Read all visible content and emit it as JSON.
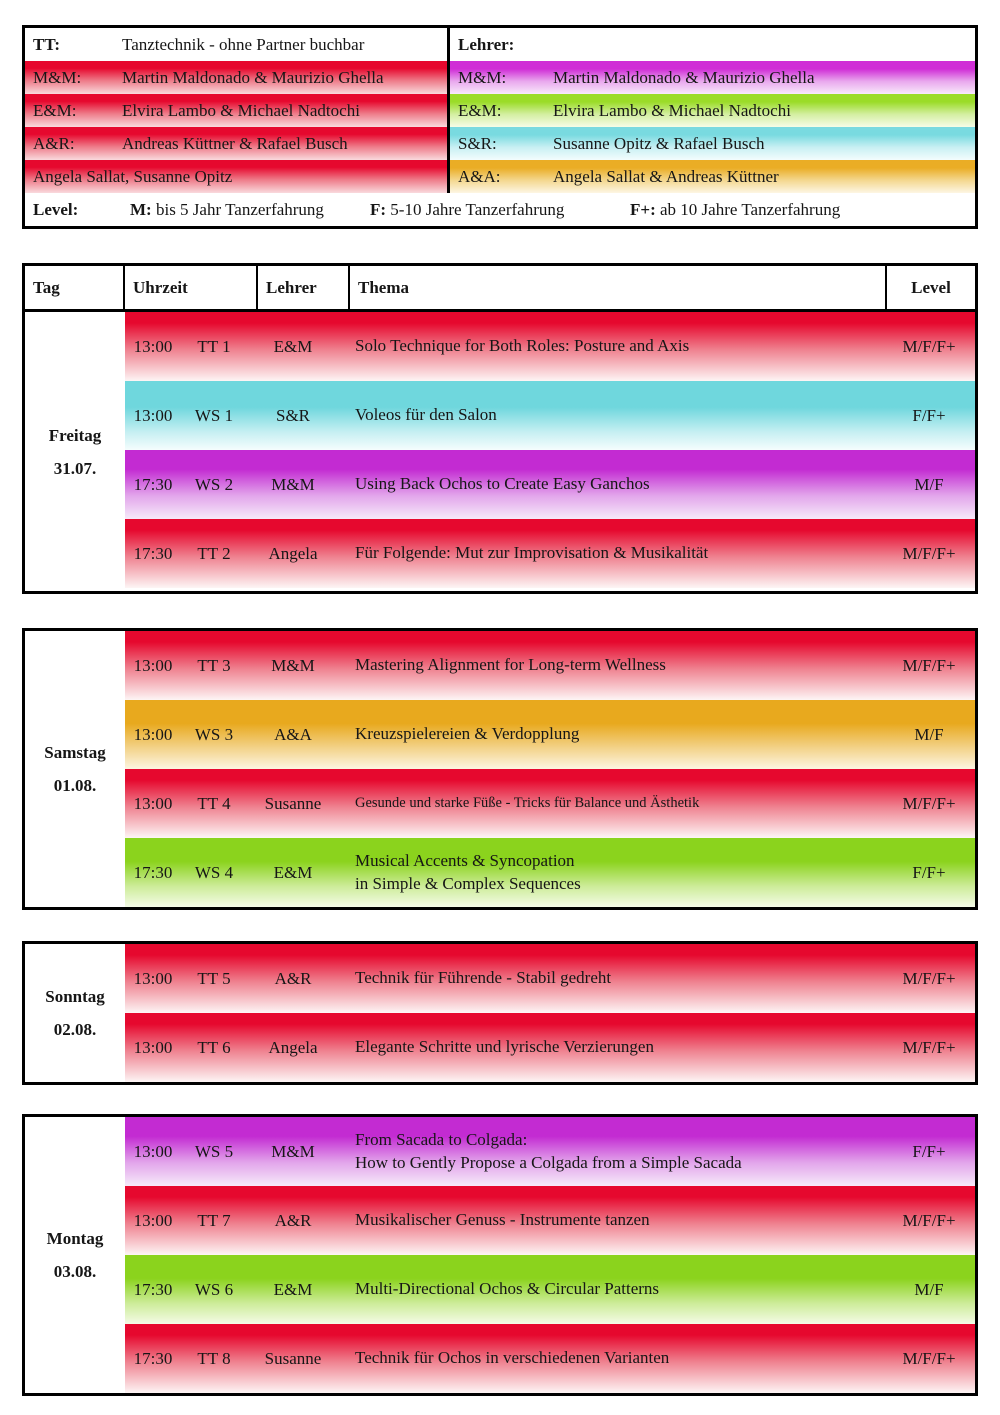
{
  "legend": {
    "tt_label": "TT:",
    "tt_value": "Tanztechnik - ohne Partner buchbar",
    "lehrer_label": "Lehrer:",
    "left_rows": [
      {
        "label": "M&M:",
        "value": "Martin Maldonado & Maurizio Ghella",
        "color": "red"
      },
      {
        "label": "E&M:",
        "value": "Elvira Lambo & Michael Nadtochi",
        "color": "red"
      },
      {
        "label": "A&R:",
        "value": "Andreas Küttner & Rafael Busch",
        "color": "red"
      },
      {
        "label": "",
        "value": "Angela Sallat, Susanne Opitz",
        "color": "red"
      }
    ],
    "right_rows": [
      {
        "label": "M&M:",
        "value": "Martin Maldonado & Maurizio Ghella",
        "color": "purple"
      },
      {
        "label": "E&M:",
        "value": "Elvira Lambo & Michael Nadtochi",
        "color": "green"
      },
      {
        "label": "S&R:",
        "value": "Susanne Opitz & Rafael Busch",
        "color": "cyan"
      },
      {
        "label": "A&A:",
        "value": "Angela Sallat & Andreas Küttner",
        "color": "orange"
      }
    ],
    "level": {
      "label": "Level:",
      "items": [
        {
          "key": "M:",
          "text": " bis 5 Jahr Tanzerfahrung"
        },
        {
          "key": "F:",
          "text": " 5-10 Jahre Tanzerfahrung"
        },
        {
          "key": "F+:",
          "text": " ab 10 Jahre Tanzerfahrung"
        }
      ]
    }
  },
  "schedule": {
    "columns": [
      "Tag",
      "Uhrzeit",
      "Lehrer",
      "Thema",
      "Level"
    ],
    "days": [
      {
        "day": "Freitag",
        "date": "31.07.",
        "rows": [
          {
            "time": "13:00",
            "code": "TT 1",
            "teacher": "E&M",
            "topic": [
              "Solo Technique for Both Roles: Posture and Axis"
            ],
            "level": "M/F/F+",
            "color": "red"
          },
          {
            "time": "13:00",
            "code": "WS 1",
            "teacher": "S&R",
            "topic": [
              "Voleos für den Salon"
            ],
            "level": "F/F+",
            "color": "cyan"
          },
          {
            "time": "17:30",
            "code": "WS 2",
            "teacher": "M&M",
            "topic": [
              "Using Back Ochos to Create Easy Ganchos"
            ],
            "level": "M/F",
            "color": "purple"
          },
          {
            "time": "17:30",
            "code": "TT 2",
            "teacher": "Angela",
            "topic": [
              "Für Folgende: Mut zur Improvisation & Musikalität"
            ],
            "level": "M/F/F+",
            "color": "red"
          }
        ]
      },
      {
        "day": "Samstag",
        "date": "01.08.",
        "rows": [
          {
            "time": "13:00",
            "code": "TT 3",
            "teacher": "M&M",
            "topic": [
              "Mastering Alignment for Long-term Wellness"
            ],
            "level": "M/F/F+",
            "color": "red"
          },
          {
            "time": "13:00",
            "code": "WS 3",
            "teacher": "A&A",
            "topic": [
              "Kreuzspielereien & Verdopplung"
            ],
            "level": "M/F",
            "color": "orange"
          },
          {
            "time": "13:00",
            "code": "TT 4",
            "teacher": "Susanne",
            "topic": [
              "Gesunde und starke Füße - Tricks für Balance und Ästhetik"
            ],
            "level": "M/F/F+",
            "color": "red"
          },
          {
            "time": "17:30",
            "code": "WS 4",
            "teacher": "E&M",
            "topic": [
              "Musical Accents & Syncopation",
              "in Simple & Complex Sequences"
            ],
            "level": "F/F+",
            "color": "green"
          }
        ]
      },
      {
        "day": "Sonntag",
        "date": "02.08.",
        "rows": [
          {
            "time": "13:00",
            "code": "TT 5",
            "teacher": "A&R",
            "topic": [
              "Technik für Führende - Stabil gedreht"
            ],
            "level": "M/F/F+",
            "color": "red"
          },
          {
            "time": "13:00",
            "code": "TT 6",
            "teacher": "Angela",
            "topic": [
              "Elegante Schritte und lyrische Verzierungen"
            ],
            "level": "M/F/F+",
            "color": "red"
          }
        ]
      },
      {
        "day": "Montag",
        "date": "03.08.",
        "rows": [
          {
            "time": "13:00",
            "code": "WS 5",
            "teacher": "M&M",
            "topic": [
              "From Sacada to Colgada:",
              "How to Gently Propose a Colgada from a Simple Sacada"
            ],
            "level": "F/F+",
            "color": "purple"
          },
          {
            "time": "13:00",
            "code": "TT 7",
            "teacher": "A&R",
            "topic": [
              "Musikalischer Genuss - Instrumente tanzen"
            ],
            "level": "M/F/F+",
            "color": "red"
          },
          {
            "time": "17:30",
            "code": "WS 6",
            "teacher": "E&M",
            "topic": [
              "Multi-Directional Ochos & Circular Patterns"
            ],
            "level": "M/F",
            "color": "green"
          },
          {
            "time": "17:30",
            "code": "TT 8",
            "teacher": "Susanne",
            "topic": [
              "Technik für Ochos in verschiedenen Varianten"
            ],
            "level": "M/F/F+",
            "color": "red"
          }
        ]
      }
    ]
  },
  "colors": {
    "red": {
      "strong": "#e6082e",
      "hold": "16%",
      "mid": "#ef8290",
      "midpos": "55%",
      "pale": "#fdf5f5"
    },
    "cyan": {
      "strong": "#6fd7dd",
      "hold": "38%",
      "mid": "#c6eff2",
      "midpos": "74%",
      "pale": "#f5fdfd"
    },
    "purple": {
      "strong": "#c32bd2",
      "hold": "28%",
      "mid": "#e2a5eb",
      "midpos": "66%",
      "pale": "#f6eaf9"
    },
    "green": {
      "strong": "#8bd31d",
      "hold": "34%",
      "mid": "#cdec99",
      "midpos": "70%",
      "pale": "#f4fbe7"
    },
    "orange": {
      "strong": "#e8a91e",
      "hold": "34%",
      "mid": "#f3d38b",
      "midpos": "70%",
      "pale": "#fcf5e1"
    }
  },
  "colors_legend": {
    "red": {
      "strong": "#e6082e",
      "hold": "22%",
      "mid": "#ee7c8a",
      "midpos": "60%",
      "pale": "#f9dadd"
    },
    "purple": {
      "strong": "#d02dd6",
      "hold": "24%",
      "mid": "#e9a9ee",
      "midpos": "62%",
      "pale": "#f8e8fa"
    },
    "green": {
      "strong": "#9bdc28",
      "hold": "24%",
      "mid": "#d4efa2",
      "midpos": "62%",
      "pale": "#f6fce7"
    },
    "cyan": {
      "strong": "#79dae0",
      "hold": "24%",
      "mid": "#c9f0f3",
      "midpos": "62%",
      "pale": "#f3fcfd"
    },
    "orange": {
      "strong": "#eaad25",
      "hold": "24%",
      "mid": "#f4d890",
      "midpos": "62%",
      "pale": "#fdf6e4"
    }
  }
}
